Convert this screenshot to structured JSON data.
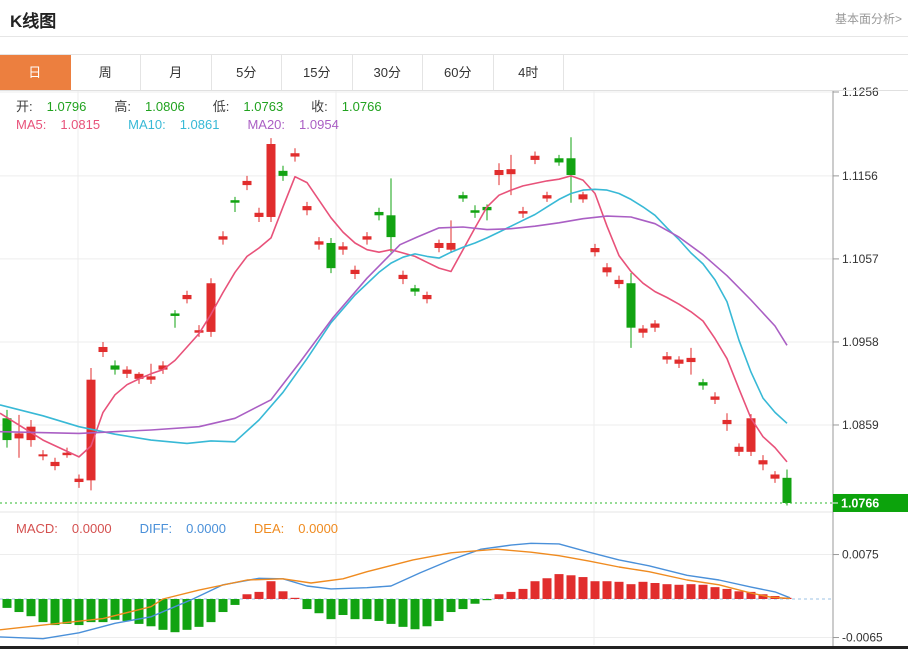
{
  "header": {
    "title": "K线图",
    "link": "基本面分析>"
  },
  "tabs": {
    "items": [
      "日",
      "周",
      "月",
      "5分",
      "15分",
      "30分",
      "60分",
      "4时"
    ],
    "active_index": 0
  },
  "legend": {
    "ohlc": [
      {
        "label": "开:",
        "value": "1.0796"
      },
      {
        "label": "高:",
        "value": "1.0806"
      },
      {
        "label": "低:",
        "value": "1.0763"
      },
      {
        "label": "收:",
        "value": "1.0766"
      }
    ],
    "ohlc_value_color": "#21a21f",
    "ma": [
      {
        "label": "MA5:",
        "value": "1.0815",
        "color": "#e8527a"
      },
      {
        "label": "MA10:",
        "value": "1.0861",
        "color": "#38b9d6"
      },
      {
        "label": "MA20:",
        "value": "1.0954",
        "color": "#aa5fc4"
      }
    ],
    "macd": [
      {
        "label": "MACD:",
        "value": "0.0000",
        "color": "#d4504f"
      },
      {
        "label": "DIFF:",
        "value": "0.0000",
        "color": "#4a90d9"
      },
      {
        "label": "DEA:",
        "value": "0.0000",
        "color": "#ef8b20"
      }
    ]
  },
  "colors": {
    "up": "#e12d2d",
    "down": "#12a312",
    "badge_bg": "#0ca30c",
    "ma5": "#e8527a",
    "ma10": "#38b9d6",
    "ma20": "#aa5fc4",
    "diff": "#4a90d9",
    "dea": "#ef8b20",
    "grid": "#ededed",
    "axis": "#999999",
    "price_line": "#2eb82e",
    "zero_line": "#9cc3e6",
    "active_tab_bg": "#ec7f3f",
    "bottom_bar": "#222222"
  },
  "chart_data": {
    "type": "candlestick+macd",
    "title": "K线图 (daily K-line with MA5/MA10/MA20 and MACD)",
    "price_axis": {
      "ticks": [
        1.1256,
        1.1156,
        1.1057,
        1.0958,
        1.0859
      ],
      "current": 1.0766,
      "grid": true
    },
    "macd_axis": {
      "ticks": [
        0.0075,
        -0.0065
      ],
      "zero_dashed": true
    },
    "candles_ohlc": [
      [
        1.0867,
        1.0877,
        1.0832,
        1.0841
      ],
      [
        1.0843,
        1.0871,
        1.082,
        1.0849
      ],
      [
        1.0841,
        1.0865,
        1.0833,
        1.0857
      ],
      [
        1.0822,
        1.0829,
        1.0817,
        1.0824
      ],
      [
        1.081,
        1.082,
        1.0805,
        1.0815
      ],
      [
        1.0823,
        1.0832,
        1.082,
        1.0826
      ],
      [
        1.0791,
        1.08,
        1.0784,
        1.0795
      ],
      [
        1.0793,
        1.0927,
        1.0781,
        1.0913
      ],
      [
        1.0946,
        1.0958,
        1.094,
        1.0952
      ],
      [
        1.093,
        1.0936,
        1.0919,
        1.0925
      ],
      [
        1.092,
        1.0929,
        1.0915,
        1.0925
      ],
      [
        1.0914,
        1.0922,
        1.0908,
        1.092
      ],
      [
        1.0913,
        1.0932,
        1.0908,
        1.0917
      ],
      [
        1.0925,
        1.0935,
        1.092,
        1.093
      ],
      [
        1.0992,
        1.0996,
        1.0975,
        1.0989
      ],
      [
        1.1009,
        1.1019,
        1.1004,
        1.1014
      ],
      [
        1.0969,
        1.0978,
        1.0964,
        1.0972
      ],
      [
        1.097,
        1.1034,
        1.0964,
        1.1028
      ],
      [
        1.108,
        1.109,
        1.1074,
        1.1084
      ],
      [
        1.1127,
        1.1131,
        1.1113,
        1.1124
      ],
      [
        1.1145,
        1.1156,
        1.1139,
        1.115
      ],
      [
        1.1107,
        1.1118,
        1.1101,
        1.1112
      ],
      [
        1.1107,
        1.1201,
        1.1101,
        1.1194
      ],
      [
        1.1162,
        1.1168,
        1.115,
        1.1156
      ],
      [
        1.1179,
        1.1189,
        1.1173,
        1.1183
      ],
      [
        1.1115,
        1.1125,
        1.1109,
        1.112
      ],
      [
        1.1074,
        1.1083,
        1.1068,
        1.1078
      ],
      [
        1.1076,
        1.1082,
        1.104,
        1.1046
      ],
      [
        1.1068,
        1.1077,
        1.1062,
        1.1072
      ],
      [
        1.1039,
        1.1049,
        1.1033,
        1.1044
      ],
      [
        1.108,
        1.1089,
        1.1074,
        1.1084
      ],
      [
        1.1113,
        1.1118,
        1.1103,
        1.1109
      ],
      [
        1.1109,
        1.1153,
        1.1065,
        1.1083
      ],
      [
        1.1033,
        1.1043,
        1.1027,
        1.1038
      ],
      [
        1.1022,
        1.1026,
        1.1013,
        1.1018
      ],
      [
        1.1009,
        1.1018,
        1.1004,
        1.1014
      ],
      [
        1.107,
        1.108,
        1.1065,
        1.1076
      ],
      [
        1.1068,
        1.1103,
        1.1065,
        1.1076
      ],
      [
        1.1133,
        1.1137,
        1.1125,
        1.1129
      ],
      [
        1.1115,
        1.1121,
        1.1106,
        1.1112
      ],
      [
        1.1119,
        1.1122,
        1.1103,
        1.1115
      ],
      [
        1.1157,
        1.1171,
        1.1145,
        1.1163
      ],
      [
        1.1158,
        1.1181,
        1.1133,
        1.1164
      ],
      [
        1.1111,
        1.1119,
        1.1106,
        1.1114
      ],
      [
        1.1175,
        1.1185,
        1.117,
        1.118
      ],
      [
        1.1129,
        1.1137,
        1.1125,
        1.1133
      ],
      [
        1.1177,
        1.1181,
        1.1168,
        1.1172
      ],
      [
        1.1177,
        1.1202,
        1.1124,
        1.1157
      ],
      [
        1.1128,
        1.1137,
        1.1124,
        1.1134
      ],
      [
        1.1065,
        1.1075,
        1.106,
        1.107
      ],
      [
        1.1041,
        1.1052,
        1.1036,
        1.1047
      ],
      [
        1.1027,
        1.1037,
        1.1022,
        1.1032
      ],
      [
        1.1028,
        1.104,
        1.0951,
        1.0975
      ],
      [
        1.0969,
        1.0978,
        1.0963,
        1.0974
      ],
      [
        1.0975,
        1.0984,
        1.097,
        1.098
      ],
      [
        1.0937,
        1.0946,
        1.0932,
        1.0941
      ],
      [
        1.0932,
        1.0941,
        1.0927,
        1.0937
      ],
      [
        1.0934,
        1.0951,
        1.0919,
        1.0939
      ],
      [
        1.091,
        1.0914,
        1.0901,
        1.0906
      ],
      [
        1.0889,
        1.0898,
        1.0884,
        1.0893
      ],
      [
        1.086,
        1.0873,
        1.0852,
        1.0865
      ],
      [
        1.0827,
        1.0837,
        1.0822,
        1.0833
      ],
      [
        1.0827,
        1.0872,
        1.0822,
        1.0867
      ],
      [
        1.0812,
        1.0823,
        1.0805,
        1.0817
      ],
      [
        1.0795,
        1.0804,
        1.079,
        1.08
      ],
      [
        1.0796,
        1.0806,
        1.0763,
        1.0766
      ]
    ],
    "ma5": [
      [
        0,
        1.0873
      ],
      [
        43,
        1.0841
      ],
      [
        79,
        1.0821
      ],
      [
        91,
        1.0834
      ],
      [
        103,
        1.0874
      ],
      [
        115,
        1.0895
      ],
      [
        127,
        1.0907
      ],
      [
        139,
        1.0914
      ],
      [
        151,
        1.092
      ],
      [
        163,
        1.0925
      ],
      [
        175,
        1.0936
      ],
      [
        187,
        1.0952
      ],
      [
        199,
        1.0968
      ],
      [
        211,
        1.0991
      ],
      [
        223,
        1.1017
      ],
      [
        235,
        1.1041
      ],
      [
        247,
        1.106
      ],
      [
        259,
        1.107
      ],
      [
        271,
        1.1082
      ],
      [
        283,
        1.1119
      ],
      [
        295,
        1.1155
      ],
      [
        307,
        1.1148
      ],
      [
        319,
        1.1127
      ],
      [
        331,
        1.1106
      ],
      [
        343,
        1.1089
      ],
      [
        355,
        1.1076
      ],
      [
        367,
        1.1068
      ],
      [
        379,
        1.1065
      ],
      [
        391,
        1.1068
      ],
      [
        403,
        1.1064
      ],
      [
        415,
        1.106
      ],
      [
        427,
        1.1053
      ],
      [
        439,
        1.1046
      ],
      [
        451,
        1.1042
      ],
      [
        463,
        1.1068
      ],
      [
        475,
        1.1094
      ],
      [
        487,
        1.1119
      ],
      [
        499,
        1.1133
      ],
      [
        511,
        1.1139
      ],
      [
        523,
        1.1144
      ],
      [
        535,
        1.1147
      ],
      [
        547,
        1.115
      ],
      [
        559,
        1.1152
      ],
      [
        571,
        1.1156
      ],
      [
        583,
        1.1151
      ],
      [
        595,
        1.1135
      ],
      [
        607,
        1.1096
      ],
      [
        619,
        1.1061
      ],
      [
        631,
        1.1042
      ],
      [
        643,
        1.1028
      ],
      [
        655,
        1.1018
      ],
      [
        667,
        1.1011
      ],
      [
        679,
        1.1003
      ],
      [
        691,
        1.0994
      ],
      [
        703,
        1.0983
      ],
      [
        715,
        1.0962
      ],
      [
        727,
        1.0938
      ],
      [
        739,
        1.0902
      ],
      [
        751,
        1.0867
      ],
      [
        763,
        1.0845
      ],
      [
        775,
        1.0832
      ],
      [
        787,
        1.0815
      ]
    ],
    "ma10": [
      [
        0,
        1.0883
      ],
      [
        43,
        1.087
      ],
      [
        79,
        1.0857
      ],
      [
        115,
        1.0848
      ],
      [
        151,
        1.0841
      ],
      [
        187,
        1.0837
      ],
      [
        211,
        1.084
      ],
      [
        235,
        1.0839
      ],
      [
        259,
        1.0865
      ],
      [
        283,
        1.0898
      ],
      [
        307,
        1.0938
      ],
      [
        331,
        1.0981
      ],
      [
        355,
        1.1014
      ],
      [
        379,
        1.1041
      ],
      [
        391,
        1.1052
      ],
      [
        403,
        1.1059
      ],
      [
        415,
        1.1063
      ],
      [
        427,
        1.106
      ],
      [
        439,
        1.1058
      ],
      [
        451,
        1.1065
      ],
      [
        463,
        1.1071
      ],
      [
        475,
        1.1076
      ],
      [
        487,
        1.1082
      ],
      [
        499,
        1.1089
      ],
      [
        511,
        1.1096
      ],
      [
        523,
        1.1103
      ],
      [
        535,
        1.111
      ],
      [
        547,
        1.1119
      ],
      [
        559,
        1.1128
      ],
      [
        571,
        1.1135
      ],
      [
        583,
        1.1139
      ],
      [
        595,
        1.114
      ],
      [
        607,
        1.1139
      ],
      [
        619,
        1.1135
      ],
      [
        631,
        1.1128
      ],
      [
        643,
        1.1119
      ],
      [
        655,
        1.1109
      ],
      [
        667,
        1.1094
      ],
      [
        679,
        1.108
      ],
      [
        691,
        1.1064
      ],
      [
        703,
        1.1051
      ],
      [
        715,
        1.1032
      ],
      [
        727,
        1.1006
      ],
      [
        739,
        1.096
      ],
      [
        751,
        1.0922
      ],
      [
        763,
        1.0891
      ],
      [
        775,
        1.0874
      ],
      [
        787,
        1.0861
      ]
    ],
    "ma20": [
      [
        0,
        1.0851
      ],
      [
        79,
        1.0849
      ],
      [
        151,
        1.0853
      ],
      [
        199,
        1.0857
      ],
      [
        235,
        1.0867
      ],
      [
        271,
        1.0889
      ],
      [
        300,
        1.0934
      ],
      [
        333,
        1.0987
      ],
      [
        367,
        1.1034
      ],
      [
        400,
        1.1074
      ],
      [
        417,
        1.1083
      ],
      [
        439,
        1.1094
      ],
      [
        463,
        1.1095
      ],
      [
        487,
        1.1092
      ],
      [
        511,
        1.1093
      ],
      [
        535,
        1.1096
      ],
      [
        559,
        1.11
      ],
      [
        583,
        1.1105
      ],
      [
        607,
        1.1108
      ],
      [
        631,
        1.1107
      ],
      [
        655,
        1.1099
      ],
      [
        679,
        1.1083
      ],
      [
        703,
        1.1062
      ],
      [
        727,
        1.1037
      ],
      [
        751,
        1.1008
      ],
      [
        775,
        1.0977
      ],
      [
        787,
        1.0954
      ]
    ],
    "macd_hist": [
      -0.0015,
      -0.0022,
      -0.0029,
      -0.0039,
      -0.0044,
      -0.0042,
      -0.0044,
      -0.0039,
      -0.0039,
      -0.0035,
      -0.0037,
      -0.0042,
      -0.0046,
      -0.0052,
      -0.0056,
      -0.0052,
      -0.0047,
      -0.0039,
      -0.0022,
      -0.001,
      0.0008,
      0.0012,
      0.003,
      0.0013,
      0.0002,
      -0.0017,
      -0.0024,
      -0.0034,
      -0.0027,
      -0.0034,
      -0.0034,
      -0.0037,
      -0.0042,
      -0.0047,
      -0.0051,
      -0.0046,
      -0.0037,
      -0.0022,
      -0.0017,
      -0.0008,
      -0.0002,
      0.0008,
      0.0012,
      0.0017,
      0.003,
      0.0035,
      0.0042,
      0.004,
      0.0037,
      0.003,
      0.003,
      0.0029,
      0.0025,
      0.0029,
      0.0027,
      0.0025,
      0.0024,
      0.0025,
      0.0024,
      0.002,
      0.0017,
      0.0013,
      0.0012,
      0.0008,
      0.0005,
      0.0002
    ],
    "diff_line": [
      [
        0,
        -0.0064
      ],
      [
        43,
        -0.0067
      ],
      [
        79,
        -0.0057
      ],
      [
        115,
        -0.0041
      ],
      [
        151,
        -0.003
      ],
      [
        193,
        0.0
      ],
      [
        223,
        0.0024
      ],
      [
        259,
        0.0035
      ],
      [
        283,
        0.0034
      ],
      [
        307,
        0.0022
      ],
      [
        331,
        0.0017
      ],
      [
        367,
        0.0019
      ],
      [
        391,
        0.0022
      ],
      [
        420,
        0.0044
      ],
      [
        451,
        0.0066
      ],
      [
        481,
        0.0084
      ],
      [
        511,
        0.0091
      ],
      [
        531,
        0.0094
      ],
      [
        559,
        0.0093
      ],
      [
        589,
        0.0079
      ],
      [
        619,
        0.0066
      ],
      [
        649,
        0.0056
      ],
      [
        687,
        0.004
      ],
      [
        719,
        0.0032
      ],
      [
        751,
        0.002
      ],
      [
        775,
        0.0012
      ],
      [
        790,
        0.0002
      ]
    ],
    "dea_line": [
      [
        0,
        -0.0052
      ],
      [
        43,
        -0.0044
      ],
      [
        103,
        -0.0033
      ],
      [
        151,
        -0.0013
      ],
      [
        163,
        0.0
      ],
      [
        199,
        0.0015
      ],
      [
        247,
        0.0032
      ],
      [
        283,
        0.0034
      ],
      [
        311,
        0.0027
      ],
      [
        343,
        0.0034
      ],
      [
        367,
        0.0046
      ],
      [
        413,
        0.0066
      ],
      [
        451,
        0.0078
      ],
      [
        497,
        0.0084
      ],
      [
        531,
        0.0079
      ],
      [
        559,
        0.0073
      ],
      [
        589,
        0.0064
      ],
      [
        619,
        0.0054
      ],
      [
        649,
        0.0046
      ],
      [
        687,
        0.0032
      ],
      [
        719,
        0.0024
      ],
      [
        751,
        0.001
      ],
      [
        771,
        0.0003
      ],
      [
        790,
        0.0001
      ]
    ]
  }
}
